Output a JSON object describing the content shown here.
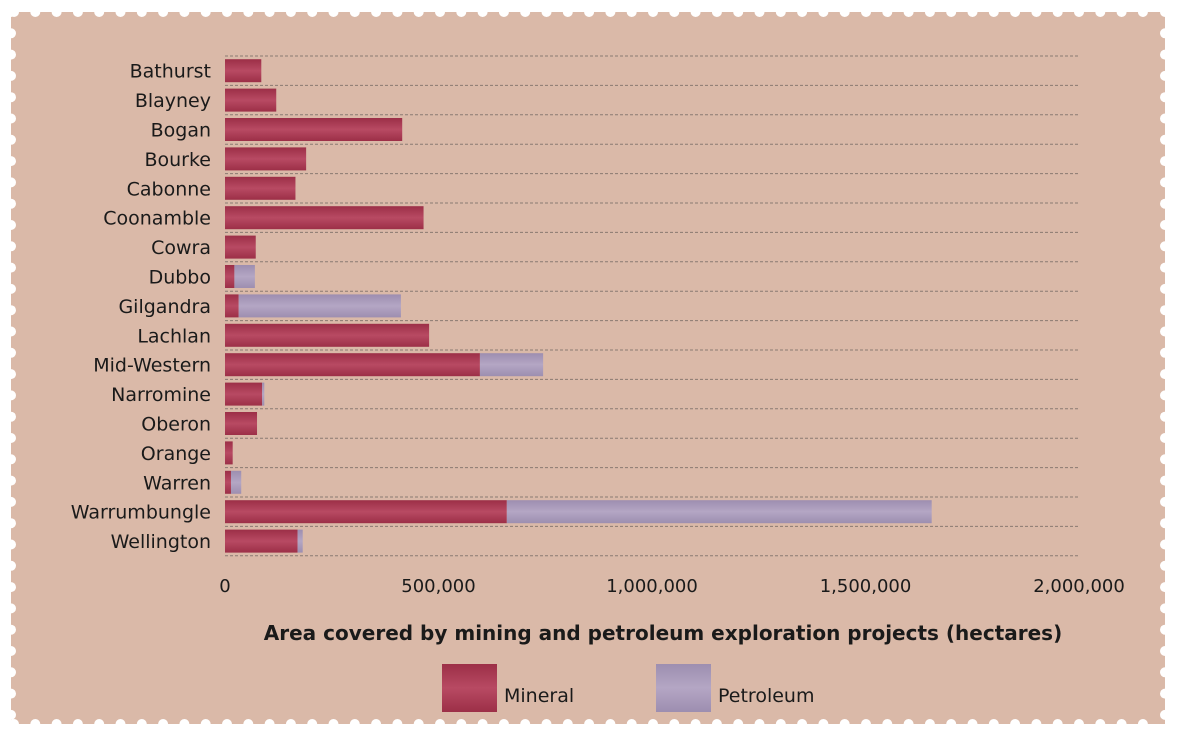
{
  "chart_data": {
    "type": "bar",
    "orientation": "horizontal",
    "stacked": true,
    "categories": [
      "Bathurst",
      "Blayney",
      "Bogan",
      "Bourke",
      "Cabonne",
      "Coonamble",
      "Cowra",
      "Dubbo",
      "Gilgandra",
      "Lachlan",
      "Mid-Western",
      "Narromine",
      "Oberon",
      "Orange",
      "Warren",
      "Warrumbungle",
      "Wellington"
    ],
    "series": [
      {
        "name": "Mineral",
        "color": "#a8384f",
        "values": [
          85000,
          120000,
          415000,
          190000,
          165000,
          465000,
          72000,
          22000,
          32000,
          478000,
          597000,
          87000,
          75000,
          18000,
          14000,
          660000,
          170000
        ]
      },
      {
        "name": "Petroleum",
        "color": "#a899b8",
        "values": [
          0,
          0,
          0,
          0,
          0,
          0,
          0,
          48000,
          380000,
          0,
          148000,
          5000,
          0,
          0,
          24000,
          995000,
          12000
        ]
      }
    ],
    "xlim": [
      0,
      2000000
    ],
    "xticks": [
      0,
      500000,
      1000000,
      1500000,
      2000000
    ],
    "xtick_labels": [
      "0",
      "500,000",
      "1,000,000",
      "1,500,000",
      "2,000,000"
    ],
    "xlabel": "Area covered by mining and petroleum exploration projects (hectares)",
    "ylabel": "",
    "title": "",
    "grid": "horizontal dashed",
    "legend_position": "bottom-center"
  },
  "colors": {
    "background": "#dab9a8",
    "border": "#ffffff",
    "gridline": "#8a7a72"
  }
}
